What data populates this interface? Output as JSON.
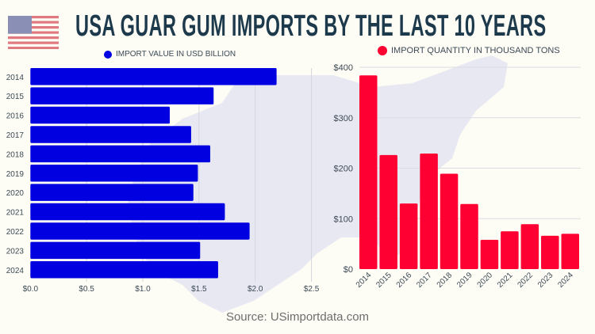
{
  "title": "USA GUAR GUM IMPORTS BY THE LAST 10 YEARS",
  "source": "Source: USimportdata.com",
  "chart_data": [
    {
      "type": "bar",
      "orientation": "horizontal",
      "legend": "IMPORT VALUE IN USD BILLION",
      "color": "#0000e0",
      "categories": [
        "2014",
        "2015",
        "2016",
        "2017",
        "2018",
        "2019",
        "2020",
        "2021",
        "2022",
        "2023",
        "2024"
      ],
      "values": [
        2.19,
        1.63,
        1.24,
        1.43,
        1.6,
        1.49,
        1.45,
        1.73,
        1.95,
        1.51,
        1.67
      ],
      "xlim": [
        0,
        2.5
      ],
      "xticks": [
        "$0.0",
        "$0.5",
        "$1.0",
        "$1.5",
        "$2.0",
        "$2.5"
      ],
      "grid": true
    },
    {
      "type": "bar",
      "orientation": "vertical",
      "legend": "IMPORT QUANTITY IN THOUSAND TONS",
      "color": "#ff0033",
      "categories": [
        "2014",
        "2015",
        "2016",
        "2017",
        "2018",
        "2019",
        "2020",
        "2021",
        "2022",
        "2023",
        "2024"
      ],
      "values": [
        384,
        226,
        130,
        229,
        189,
        129,
        58,
        75,
        89,
        66,
        70
      ],
      "ylim": [
        0,
        400
      ],
      "yticks": [
        "$0",
        "$100",
        "$200",
        "$300",
        "$400"
      ],
      "grid": true
    }
  ]
}
